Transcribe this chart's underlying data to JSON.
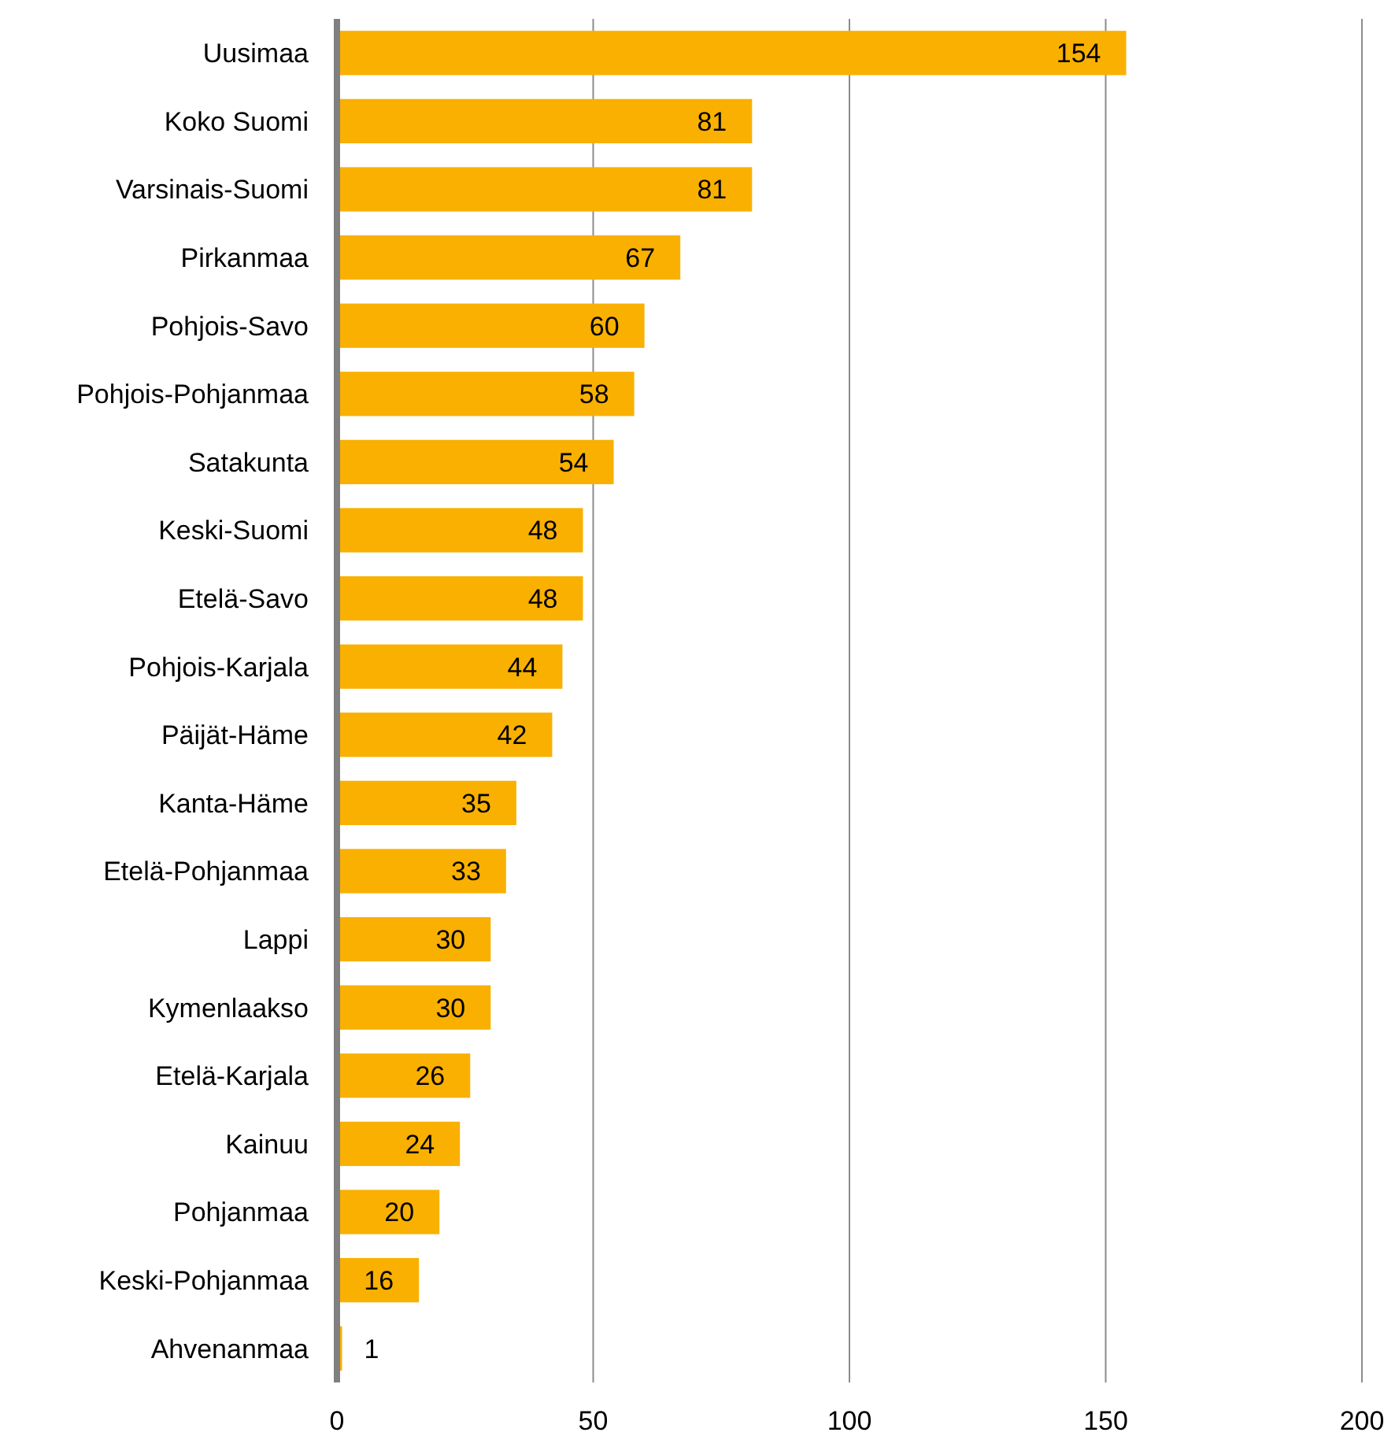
{
  "chart_data": {
    "type": "bar",
    "orientation": "horizontal",
    "categories": [
      "Uusimaa",
      "Koko Suomi",
      "Varsinais-Suomi",
      "Pirkanmaa",
      "Pohjois-Savo",
      "Pohjois-Pohjanmaa",
      "Satakunta",
      "Keski-Suomi",
      "Etelä-Savo",
      "Pohjois-Karjala",
      "Päijät-Häme",
      "Kanta-Häme",
      "Etelä-Pohjanmaa",
      "Lappi",
      "Kymenlaakso",
      "Etelä-Karjala",
      "Kainuu",
      "Pohjanmaa",
      "Keski-Pohjanmaa",
      "Ahvenanmaa"
    ],
    "values": [
      154,
      81,
      81,
      67,
      60,
      58,
      54,
      48,
      48,
      44,
      42,
      35,
      33,
      30,
      30,
      26,
      24,
      20,
      16,
      1
    ],
    "color": "#f9b000",
    "xlim": [
      0,
      200
    ],
    "xticks": [
      0,
      50,
      100,
      150,
      200
    ],
    "grid": "x",
    "data_labels": true
  }
}
